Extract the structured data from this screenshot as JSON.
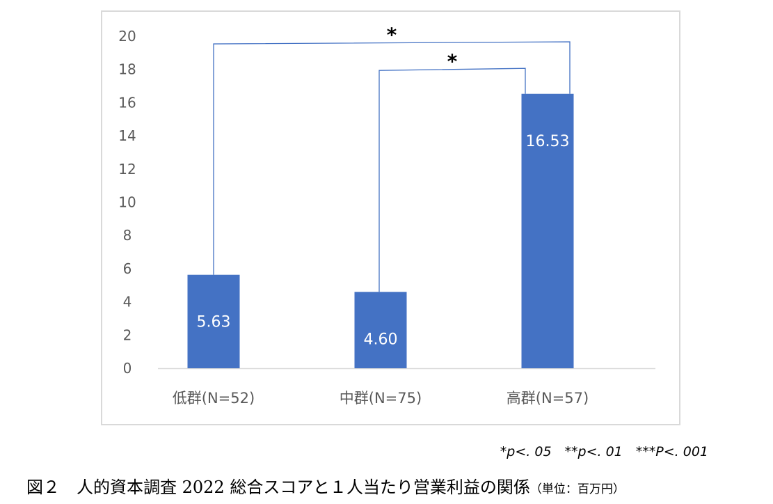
{
  "chart_data": {
    "type": "bar",
    "categories": [
      "低群(N=52)",
      "中群(N=75)",
      "高群(N=57)"
    ],
    "values": [
      5.63,
      4.6,
      16.53
    ],
    "value_labels": [
      "5.63",
      "4.60",
      "16.53"
    ],
    "ylim": [
      0,
      20
    ],
    "yticks": [
      0,
      2,
      4,
      6,
      8,
      10,
      12,
      14,
      16,
      18,
      20
    ],
    "grid": false,
    "bar_color": "#4472c4",
    "bracket_color": "#4472c4",
    "significance": [
      {
        "from": 0,
        "to": 2,
        "y": 19.6,
        "label": "*"
      },
      {
        "from": 1,
        "to": 2,
        "y": 18.0,
        "label": "*"
      }
    ]
  },
  "footnote": "*p<. 05　**p<. 01　***P<. 001",
  "caption": {
    "main": "図２　人的資本調査 2022 総合スコアと１人当たり営業利益の関係",
    "unit": "（単位：百万円）"
  }
}
